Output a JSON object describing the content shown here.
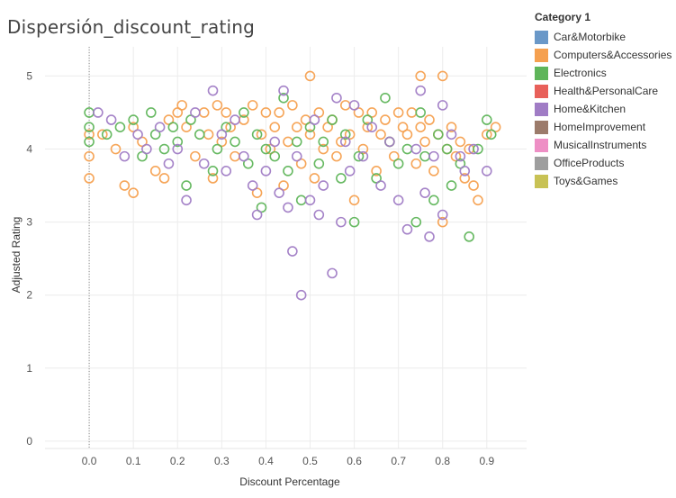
{
  "chart_data": {
    "type": "scatter",
    "title": "Dispersión_discount_rating",
    "xlabel": "Discount Percentage",
    "ylabel": "Adjusted Rating",
    "xlim": [
      -0.1,
      0.99
    ],
    "ylim": [
      -0.1,
      5.4
    ],
    "xticks": [
      "0.0",
      "0.1",
      "0.2",
      "0.3",
      "0.4",
      "0.5",
      "0.6",
      "0.7",
      "0.8",
      "0.9"
    ],
    "yticks": [
      "0",
      "1",
      "2",
      "3",
      "4",
      "5"
    ],
    "grid": true,
    "marker": "hollow-circle",
    "legend_title": "Category 1",
    "legend_placement": "right",
    "series": [
      {
        "name": "Car&Motorbike",
        "color": "#6a98c8",
        "points": []
      },
      {
        "name": "Computers&Accessories",
        "color": "#f5a04f",
        "points": [
          [
            0.0,
            3.6
          ],
          [
            0.0,
            4.2
          ],
          [
            0.0,
            3.9
          ],
          [
            0.03,
            4.2
          ],
          [
            0.06,
            4.0
          ],
          [
            0.08,
            3.5
          ],
          [
            0.1,
            3.4
          ],
          [
            0.1,
            4.3
          ],
          [
            0.12,
            4.1
          ],
          [
            0.15,
            3.7
          ],
          [
            0.17,
            3.6
          ],
          [
            0.18,
            4.4
          ],
          [
            0.2,
            4.5
          ],
          [
            0.21,
            4.6
          ],
          [
            0.22,
            4.3
          ],
          [
            0.24,
            3.9
          ],
          [
            0.26,
            4.5
          ],
          [
            0.27,
            4.2
          ],
          [
            0.28,
            3.6
          ],
          [
            0.29,
            4.6
          ],
          [
            0.3,
            4.1
          ],
          [
            0.31,
            4.5
          ],
          [
            0.32,
            4.3
          ],
          [
            0.33,
            3.9
          ],
          [
            0.35,
            4.4
          ],
          [
            0.37,
            4.6
          ],
          [
            0.38,
            3.4
          ],
          [
            0.39,
            4.2
          ],
          [
            0.4,
            4.5
          ],
          [
            0.41,
            4.0
          ],
          [
            0.42,
            4.3
          ],
          [
            0.43,
            4.5
          ],
          [
            0.44,
            3.5
          ],
          [
            0.45,
            4.1
          ],
          [
            0.46,
            4.6
          ],
          [
            0.47,
            4.3
          ],
          [
            0.48,
            3.8
          ],
          [
            0.49,
            4.4
          ],
          [
            0.5,
            5.0
          ],
          [
            0.5,
            4.2
          ],
          [
            0.51,
            3.6
          ],
          [
            0.52,
            4.5
          ],
          [
            0.53,
            4.0
          ],
          [
            0.54,
            4.3
          ],
          [
            0.55,
            4.4
          ],
          [
            0.56,
            3.9
          ],
          [
            0.57,
            4.1
          ],
          [
            0.58,
            4.6
          ],
          [
            0.59,
            4.2
          ],
          [
            0.6,
            3.3
          ],
          [
            0.61,
            4.5
          ],
          [
            0.62,
            4.0
          ],
          [
            0.63,
            4.3
          ],
          [
            0.64,
            4.5
          ],
          [
            0.65,
            3.7
          ],
          [
            0.66,
            4.2
          ],
          [
            0.67,
            4.4
          ],
          [
            0.68,
            4.1
          ],
          [
            0.69,
            3.9
          ],
          [
            0.7,
            4.5
          ],
          [
            0.71,
            4.3
          ],
          [
            0.72,
            4.2
          ],
          [
            0.73,
            4.5
          ],
          [
            0.74,
            3.8
          ],
          [
            0.75,
            5.0
          ],
          [
            0.75,
            4.3
          ],
          [
            0.76,
            4.1
          ],
          [
            0.77,
            4.4
          ],
          [
            0.78,
            3.7
          ],
          [
            0.79,
            4.2
          ],
          [
            0.8,
            5.0
          ],
          [
            0.8,
            3.0
          ],
          [
            0.81,
            4.0
          ],
          [
            0.82,
            4.3
          ],
          [
            0.83,
            3.9
          ],
          [
            0.84,
            4.1
          ],
          [
            0.85,
            3.6
          ],
          [
            0.86,
            4.0
          ],
          [
            0.87,
            3.5
          ],
          [
            0.88,
            3.3
          ],
          [
            0.9,
            4.2
          ],
          [
            0.92,
            4.3
          ]
        ]
      },
      {
        "name": "Electronics",
        "color": "#5fb55a",
        "points": [
          [
            0.0,
            4.5
          ],
          [
            0.0,
            4.3
          ],
          [
            0.0,
            4.1
          ],
          [
            0.04,
            4.2
          ],
          [
            0.07,
            4.3
          ],
          [
            0.1,
            4.4
          ],
          [
            0.12,
            3.9
          ],
          [
            0.14,
            4.5
          ],
          [
            0.15,
            4.2
          ],
          [
            0.17,
            4.0
          ],
          [
            0.19,
            4.3
          ],
          [
            0.2,
            4.1
          ],
          [
            0.22,
            3.5
          ],
          [
            0.23,
            4.4
          ],
          [
            0.25,
            4.2
          ],
          [
            0.28,
            3.7
          ],
          [
            0.29,
            4.0
          ],
          [
            0.31,
            4.3
          ],
          [
            0.33,
            4.1
          ],
          [
            0.35,
            4.5
          ],
          [
            0.36,
            3.8
          ],
          [
            0.38,
            4.2
          ],
          [
            0.39,
            3.2
          ],
          [
            0.4,
            4.0
          ],
          [
            0.42,
            3.9
          ],
          [
            0.44,
            4.7
          ],
          [
            0.45,
            3.7
          ],
          [
            0.47,
            4.1
          ],
          [
            0.48,
            3.3
          ],
          [
            0.5,
            4.3
          ],
          [
            0.52,
            3.8
          ],
          [
            0.53,
            4.1
          ],
          [
            0.55,
            4.4
          ],
          [
            0.57,
            3.6
          ],
          [
            0.58,
            4.2
          ],
          [
            0.6,
            3.0
          ],
          [
            0.61,
            3.9
          ],
          [
            0.63,
            4.4
          ],
          [
            0.65,
            3.6
          ],
          [
            0.67,
            4.7
          ],
          [
            0.68,
            4.1
          ],
          [
            0.7,
            3.8
          ],
          [
            0.72,
            4.0
          ],
          [
            0.74,
            3.0
          ],
          [
            0.75,
            4.5
          ],
          [
            0.76,
            3.9
          ],
          [
            0.78,
            3.3
          ],
          [
            0.79,
            4.2
          ],
          [
            0.81,
            4.0
          ],
          [
            0.82,
            3.5
          ],
          [
            0.84,
            3.8
          ],
          [
            0.86,
            2.8
          ],
          [
            0.88,
            4.0
          ],
          [
            0.9,
            4.4
          ],
          [
            0.91,
            4.2
          ]
        ]
      },
      {
        "name": "Health&PersonalCare",
        "color": "#e8605a",
        "points": []
      },
      {
        "name": "Home&Kitchen",
        "color": "#a07cc5",
        "points": [
          [
            0.02,
            4.5
          ],
          [
            0.05,
            4.4
          ],
          [
            0.08,
            3.9
          ],
          [
            0.11,
            4.2
          ],
          [
            0.13,
            4.0
          ],
          [
            0.16,
            4.3
          ],
          [
            0.18,
            3.8
          ],
          [
            0.2,
            4.0
          ],
          [
            0.22,
            3.3
          ],
          [
            0.24,
            4.5
          ],
          [
            0.26,
            3.8
          ],
          [
            0.28,
            4.8
          ],
          [
            0.3,
            4.2
          ],
          [
            0.31,
            3.7
          ],
          [
            0.33,
            4.4
          ],
          [
            0.35,
            3.9
          ],
          [
            0.37,
            3.5
          ],
          [
            0.38,
            3.1
          ],
          [
            0.4,
            3.7
          ],
          [
            0.42,
            4.1
          ],
          [
            0.43,
            3.4
          ],
          [
            0.44,
            4.8
          ],
          [
            0.45,
            3.2
          ],
          [
            0.46,
            2.6
          ],
          [
            0.47,
            3.9
          ],
          [
            0.48,
            2.0
          ],
          [
            0.5,
            3.3
          ],
          [
            0.51,
            4.4
          ],
          [
            0.52,
            3.1
          ],
          [
            0.53,
            3.5
          ],
          [
            0.55,
            2.3
          ],
          [
            0.56,
            4.7
          ],
          [
            0.57,
            3.0
          ],
          [
            0.58,
            4.1
          ],
          [
            0.59,
            3.7
          ],
          [
            0.6,
            4.6
          ],
          [
            0.62,
            3.9
          ],
          [
            0.64,
            4.3
          ],
          [
            0.66,
            3.5
          ],
          [
            0.68,
            4.1
          ],
          [
            0.7,
            3.3
          ],
          [
            0.72,
            2.9
          ],
          [
            0.74,
            4.0
          ],
          [
            0.75,
            4.8
          ],
          [
            0.76,
            3.4
          ],
          [
            0.77,
            2.8
          ],
          [
            0.78,
            3.9
          ],
          [
            0.8,
            4.6
          ],
          [
            0.8,
            3.1
          ],
          [
            0.82,
            4.2
          ],
          [
            0.84,
            3.9
          ],
          [
            0.85,
            3.7
          ],
          [
            0.87,
            4.0
          ],
          [
            0.9,
            3.7
          ]
        ]
      },
      {
        "name": "HomeImprovement",
        "color": "#9c7b6b",
        "points": []
      },
      {
        "name": "MusicalInstruments",
        "color": "#ee8fc5",
        "points": []
      },
      {
        "name": "OfficeProducts",
        "color": "#9e9e9e",
        "points": []
      },
      {
        "name": "Toys&Games",
        "color": "#c8c255",
        "points": []
      }
    ]
  }
}
